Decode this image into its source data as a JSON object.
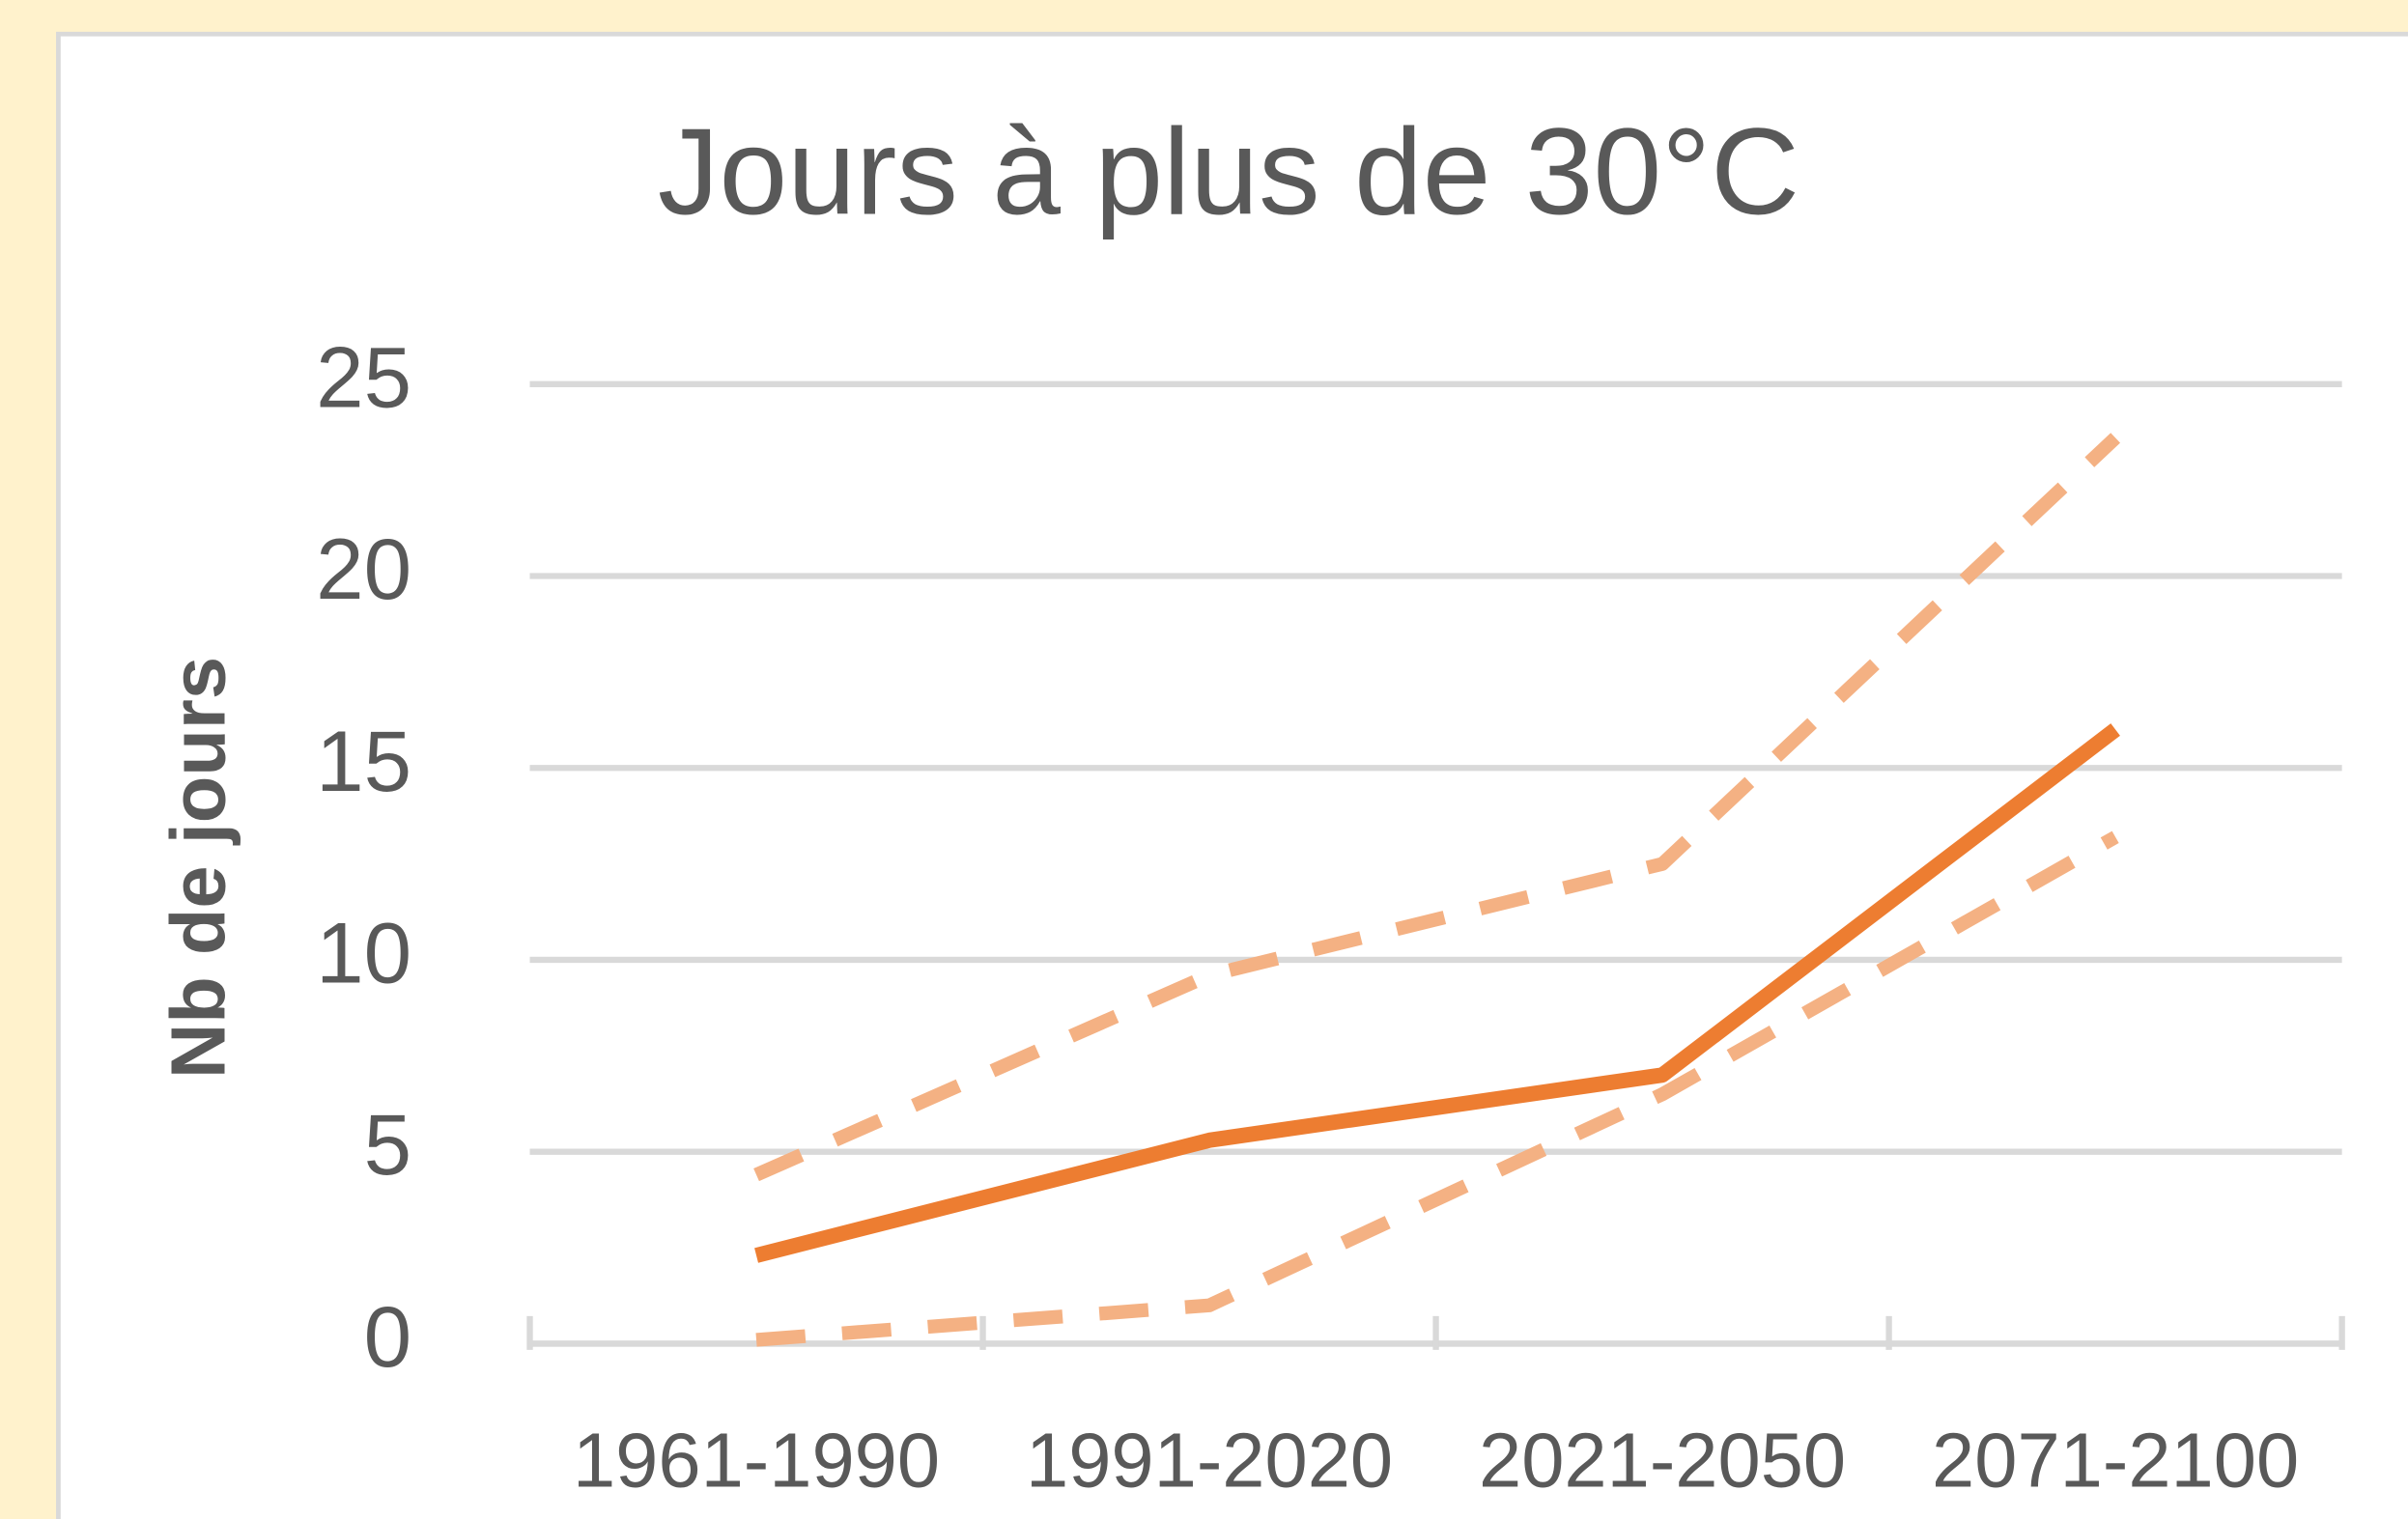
{
  "chart_data": {
    "type": "line",
    "title": "Jours à plus de 30°C",
    "y_label": "Nb de jours",
    "categories": [
      "1961-1990",
      "1991-2020",
      "2021-2050",
      "2071-2100"
    ],
    "series": [
      {
        "color": "#f4b183",
        "style": "dashed",
        "values": [
          4.4,
          9.6,
          12.5,
          23.6
        ]
      },
      {
        "color": "#f4b183",
        "style": "dashed",
        "values": [
          0.1,
          1.0,
          6.5,
          13.2
        ]
      },
      {
        "color": "#ed7d31",
        "style": "solid",
        "values": [
          2.3,
          5.3,
          7.0,
          16.0
        ]
      }
    ],
    "ylim": [
      0,
      25
    ],
    "yticks": [
      0,
      5,
      10,
      15,
      20,
      25
    ],
    "grid": true
  }
}
